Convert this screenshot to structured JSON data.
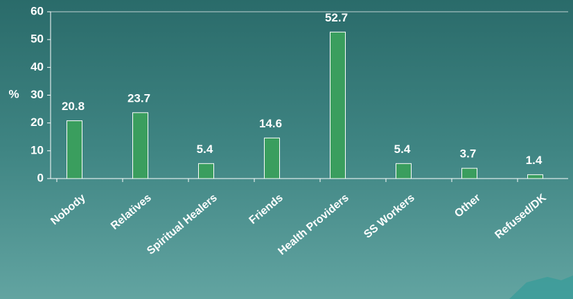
{
  "chart_data": {
    "type": "bar",
    "y_label": "%",
    "categories": [
      "Nobody",
      "Relatives",
      "Spiritual Healers",
      "Friends",
      "Health Providers",
      "SS Workers",
      "Other",
      "Refused/DK"
    ],
    "values": [
      20.8,
      23.7,
      5.4,
      14.6,
      52.7,
      5.4,
      3.7,
      1.4
    ],
    "color": "#3a9e5e",
    "ylim": [
      0,
      60
    ],
    "yticks": [
      0,
      10,
      20,
      30,
      40,
      50,
      60
    ]
  }
}
